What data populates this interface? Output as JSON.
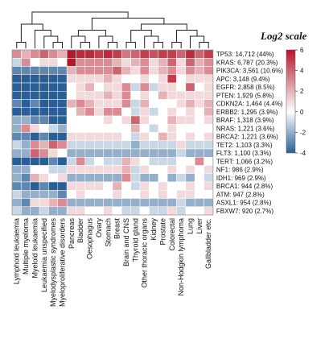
{
  "chart_data": {
    "type": "heatmap",
    "scale_title": "Log2 scale",
    "colorbar_ticks": [
      6,
      4,
      2,
      0,
      -2,
      -4
    ],
    "vmin": -4,
    "vmax": 6,
    "colors": {
      "low": "#2b5f94",
      "mid": "#ffffff",
      "high": "#b2182b"
    },
    "columns": [
      "Lymphoid leukaemia",
      "Multiple myeloma",
      "Myeloid leukaemia",
      "Leukaemia unspecified",
      "Myelodysplastic syndromes",
      "Myeloproliferative disorders",
      "Pancreas",
      "Bladder",
      "Oesophagus",
      "Ovary",
      "Stomach",
      "Breast",
      "Brain and CNS",
      "Thyroid gland",
      "Other thoracic organs",
      "Kidney",
      "Prostate",
      "Colorectal",
      "Non-Hodgkin lymphoma",
      "Lung",
      "Liver",
      "Gallbladder etc."
    ],
    "rows": [
      "TP53: 14,712 (44%)",
      "KRAS: 6,787 (20.3%)",
      "PIK3CA: 3,561 (10.6%)",
      "APC: 3,148 (9.4%)",
      "EGFR: 2,858 (8.5%)",
      "PTEN: 1,929 (5.8%)",
      "CDKN2A: 1,464 (4.4%)",
      "ERBB2: 1,295 (3.9%)",
      "BRAF: 1,318 (3.9%)",
      "NRAS: 1,221 (3.6%)",
      "BRCA2: 1,221 (3.6%)",
      "TET2: 1,103 (3.3%)",
      "FLT3: 1,100 (3.3%)",
      "TERT: 1,066 (3.2%)",
      "NF1: 986 (2.9%)",
      "IDH1: 969 (2.9%)",
      "BRCA1: 944 (2.8%)",
      "ATM: 947 (2.8%)",
      "ASXL1: 954 (2.8%)",
      "FBXW7: 920 (2.7%)"
    ],
    "values": [
      [
        3,
        2,
        3,
        4,
        3,
        2,
        6,
        5.5,
        5.5,
        5,
        5.5,
        5,
        3.5,
        4,
        5,
        4.5,
        5,
        5,
        4,
        5.5,
        4,
        5
      ],
      [
        -1,
        3,
        0,
        1,
        1,
        0,
        6,
        3,
        3,
        3,
        3,
        2,
        1,
        2,
        3,
        1,
        2,
        4,
        1,
        4,
        2,
        3
      ],
      [
        -3,
        -3,
        -3,
        -3,
        -3,
        -3,
        2,
        3,
        3,
        3,
        3,
        4,
        2,
        1,
        3,
        1,
        2,
        3,
        1,
        3,
        2,
        3
      ],
      [
        -4,
        -4,
        -4,
        -4,
        -4,
        -4,
        1,
        1,
        1,
        1,
        2,
        1,
        0,
        0,
        1,
        0,
        1,
        5,
        0,
        1,
        1,
        1
      ],
      [
        -4,
        -4,
        -4,
        -4,
        -4,
        -4,
        0,
        1,
        2,
        0,
        1,
        1,
        3,
        -1,
        3,
        -1,
        1,
        1,
        0,
        4,
        0,
        1
      ],
      [
        -4,
        -4,
        -4,
        -4,
        -4,
        -4,
        0,
        1,
        1,
        1,
        2,
        1,
        3,
        0,
        1,
        0,
        2,
        1,
        1,
        1,
        1,
        1
      ],
      [
        -3,
        -4,
        -3,
        -4,
        -4,
        -4,
        2,
        3,
        2,
        1,
        1,
        1,
        3,
        -1,
        2,
        0,
        0,
        0,
        1,
        2,
        1,
        2
      ],
      [
        -4,
        -4,
        -4,
        -4,
        -4,
        -4,
        0,
        2,
        3,
        1,
        3,
        3,
        0,
        -1,
        1,
        -1,
        0,
        1,
        0,
        1,
        0,
        2
      ],
      [
        -2,
        -2,
        -3,
        -3,
        -4,
        -4,
        0,
        0,
        0,
        0,
        1,
        0,
        1,
        4,
        1,
        0,
        0,
        2,
        1,
        1,
        0,
        1
      ],
      [
        -2,
        3,
        1,
        0,
        -1,
        -2,
        0,
        0,
        0,
        0,
        0,
        0,
        0,
        2,
        0,
        -1,
        0,
        1,
        0,
        0,
        0,
        0
      ],
      [
        -3,
        -3,
        -4,
        -3,
        -4,
        -4,
        1,
        1,
        1,
        1,
        1,
        1,
        0,
        -1,
        1,
        0,
        2,
        1,
        0,
        1,
        0,
        1
      ],
      [
        -1,
        -2,
        3,
        2,
        4,
        3,
        -1,
        -1,
        -1,
        -1,
        -1,
        -1,
        -1,
        -2,
        -1,
        -1,
        -1,
        -1,
        1,
        -1,
        -1,
        -1
      ],
      [
        -2,
        -2,
        4,
        3,
        1,
        0,
        -2,
        -2,
        -2,
        -2,
        -2,
        -2,
        -2,
        -2,
        -2,
        -2,
        -2,
        -2,
        -1,
        -2,
        -2,
        -2
      ],
      [
        -4,
        -4,
        -4,
        -4,
        -3,
        -4,
        -1,
        3,
        -1,
        0,
        -1,
        -1,
        2,
        1,
        0,
        -1,
        -1,
        -1,
        0,
        0,
        3,
        0
      ],
      [
        -2,
        -2,
        0,
        0,
        -1,
        -1,
        1,
        1,
        1,
        1,
        1,
        1,
        2,
        -1,
        1,
        0,
        0,
        1,
        0,
        1,
        0,
        1
      ],
      [
        -2,
        -3,
        2,
        1,
        0,
        1,
        -2,
        -2,
        -2,
        -2,
        -2,
        -2,
        3,
        -1,
        -2,
        -2,
        0,
        -2,
        -1,
        -2,
        0,
        -1
      ],
      [
        -3,
        -3,
        -4,
        -3,
        -4,
        -4,
        1,
        1,
        1,
        1,
        0,
        2,
        0,
        -1,
        1,
        0,
        1,
        0,
        0,
        1,
        0,
        1
      ],
      [
        -1,
        -2,
        -2,
        -2,
        -2,
        -3,
        0,
        1,
        0,
        0,
        0,
        1,
        0,
        0,
        1,
        0,
        1,
        0,
        1,
        1,
        0,
        0
      ],
      [
        -2,
        -3,
        1,
        1,
        2,
        3,
        -2,
        -2,
        -2,
        -2,
        -2,
        -2,
        -2,
        -2,
        -2,
        -2,
        -2,
        -2,
        -1,
        -2,
        -2,
        -2
      ],
      [
        -1,
        -2,
        -2,
        -1,
        -2,
        -2,
        1,
        1,
        0,
        0,
        1,
        0,
        -1,
        -1,
        0,
        -1,
        -1,
        1,
        -1,
        0,
        0,
        1
      ]
    ],
    "column_dendrogram": true
  }
}
